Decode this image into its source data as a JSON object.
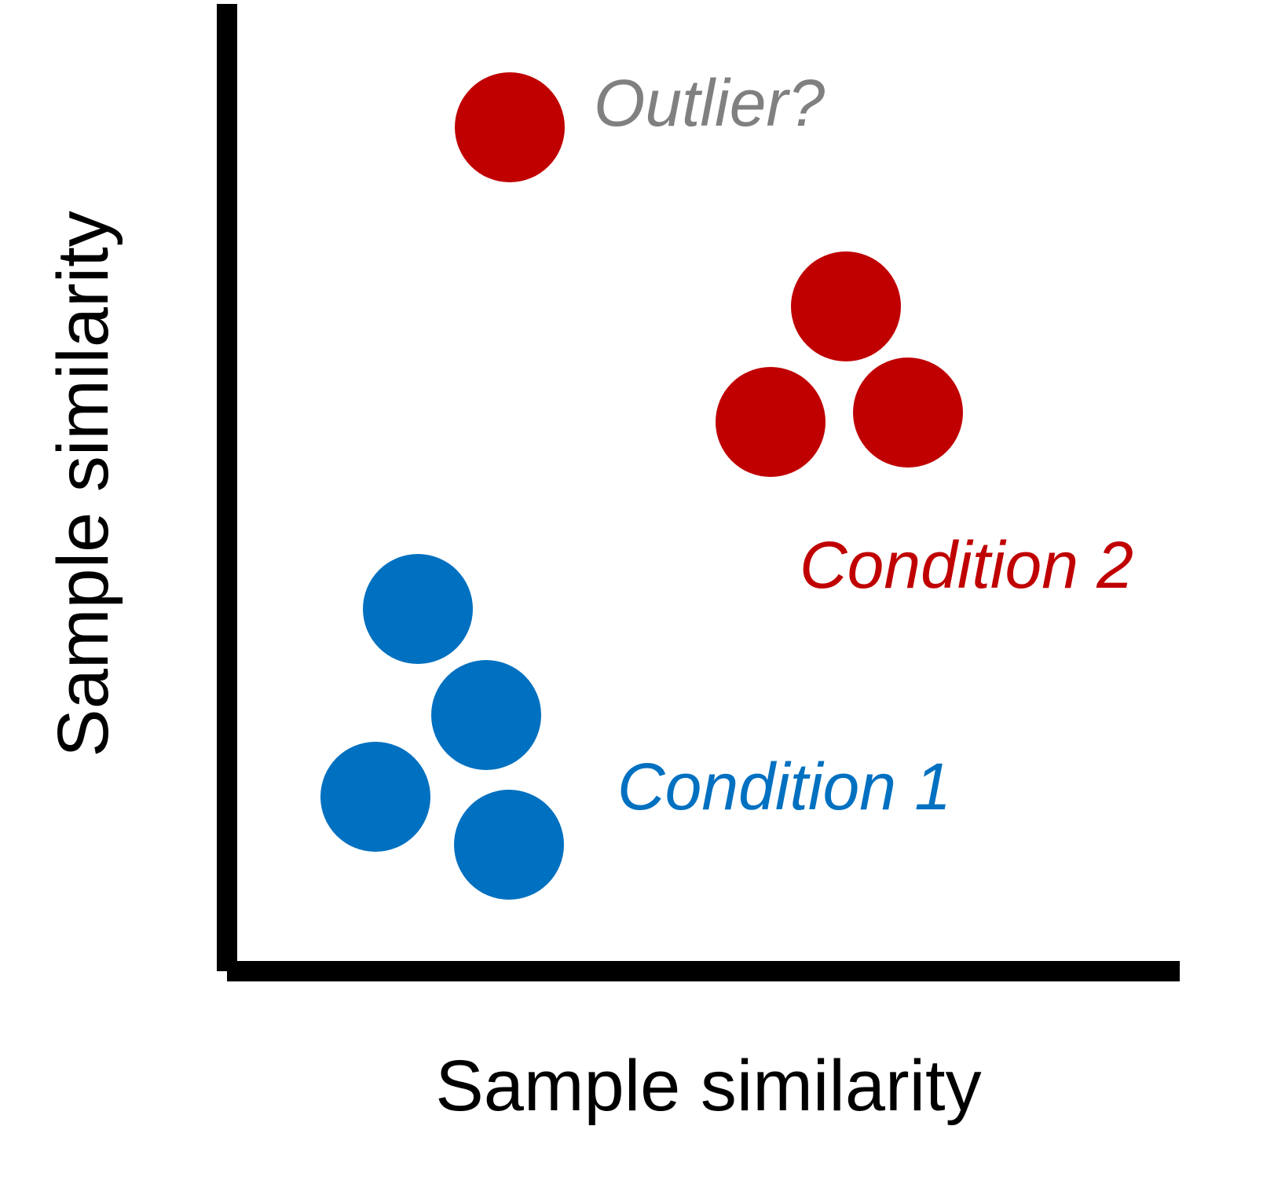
{
  "axes": {
    "x_title": "Sample similarity",
    "y_title": "Sample similarity"
  },
  "annotations": {
    "outlier": "Outlier?",
    "condition_1": "Condition 1",
    "condition_2": "Condition 2"
  },
  "colors": {
    "axis": "#000000",
    "condition_1": "#0070C0",
    "condition_2": "#C00000",
    "outlier_label": "#808080"
  },
  "groups": [
    {
      "key": "condition_1",
      "sample_count": 4
    },
    {
      "key": "condition_2",
      "sample_count": 3
    },
    {
      "key": "outlier",
      "sample_count": 1
    }
  ]
}
